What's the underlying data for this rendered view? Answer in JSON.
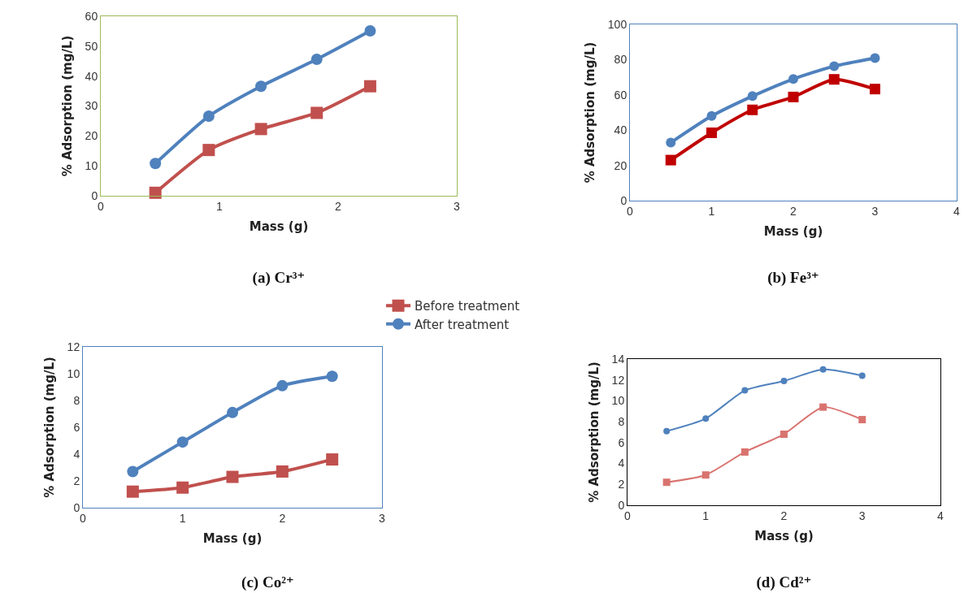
{
  "chart_data": [
    {
      "type": "line",
      "title": "(a) Cr³⁺",
      "xlabel": "Mass (g)",
      "ylabel": "% Adsorption (mg/L)",
      "xlim": [
        0,
        3
      ],
      "xticks": [
        0,
        1,
        2,
        3
      ],
      "ylim": [
        0,
        60
      ],
      "yticks": [
        0,
        10,
        20,
        30,
        40,
        50,
        60
      ],
      "grid": false,
      "legend": false,
      "series": [
        {
          "color": "#c0504d",
          "marker": "square",
          "x": [
            0.46,
            0.91,
            1.35,
            1.82,
            2.27
          ],
          "values": [
            1.0,
            15.3,
            22.3,
            27.7,
            36.6
          ]
        },
        {
          "color": "#4f81bd",
          "marker": "circle",
          "x": [
            0.46,
            0.91,
            1.35,
            1.82,
            2.27
          ],
          "values": [
            10.8,
            26.6,
            36.6,
            45.6,
            55.1
          ]
        }
      ]
    },
    {
      "type": "line",
      "title": "(b) Fe³⁺",
      "xlabel": "Mass (g)",
      "ylabel": "% Adsorption (mg/L)",
      "xlim": [
        0,
        4
      ],
      "xticks": [
        0,
        1,
        2,
        3,
        4
      ],
      "ylim": [
        0,
        100
      ],
      "yticks": [
        0,
        20,
        40,
        60,
        80,
        100
      ],
      "grid": false,
      "legend": false,
      "series": [
        {
          "color": "#c00000",
          "marker": "square",
          "x": [
            0.5,
            1,
            1.5,
            2,
            2.5,
            3
          ],
          "values": [
            23,
            38.5,
            51.5,
            58.8,
            68.8,
            63.3
          ]
        },
        {
          "color": "#4f81bd",
          "marker": "circle",
          "x": [
            0.5,
            1,
            1.5,
            2,
            2.5,
            3
          ],
          "values": [
            32.9,
            48,
            59.3,
            69,
            76.3,
            80.9
          ]
        }
      ]
    },
    {
      "type": "line",
      "title": "(c) Co²⁺",
      "xlabel": "Mass (g)",
      "ylabel": "% Adsorption (mg/L)",
      "xlim": [
        0,
        3
      ],
      "xticks": [
        0,
        1,
        2,
        3
      ],
      "ylim": [
        0,
        12
      ],
      "yticks": [
        0,
        2,
        4,
        6,
        8,
        10,
        12
      ],
      "grid": false,
      "legend": "top",
      "series": [
        {
          "name": "Before treatment",
          "color": "#c0504d",
          "marker": "square",
          "x": [
            0.5,
            1,
            1.5,
            2,
            2.5
          ],
          "values": [
            1.2,
            1.5,
            2.3,
            2.7,
            3.6
          ]
        },
        {
          "name": "After treatment",
          "color": "#4f81bd",
          "marker": "circle",
          "x": [
            0.5,
            1,
            1.5,
            2,
            2.5
          ],
          "values": [
            2.7,
            4.9,
            7.1,
            9.1,
            9.8
          ]
        }
      ]
    },
    {
      "type": "line",
      "title": "(d) Cd²⁺",
      "xlabel": "Mass (g)",
      "ylabel": "% Adsorption (mg/L)",
      "xlim": [
        0,
        4
      ],
      "xticks": [
        0,
        1,
        2,
        3,
        4
      ],
      "ylim": [
        0,
        14
      ],
      "yticks": [
        0,
        2,
        4,
        6,
        8,
        10,
        12,
        14
      ],
      "grid": false,
      "legend": false,
      "series": [
        {
          "color": "#d9736f",
          "marker": "square",
          "x": [
            0.5,
            1,
            1.5,
            2,
            2.5,
            3
          ],
          "values": [
            2.2,
            2.9,
            5.1,
            6.8,
            9.4,
            8.2
          ]
        },
        {
          "color": "#4f81bd",
          "marker": "circle",
          "x": [
            0.5,
            1,
            1.5,
            2,
            2.5,
            3
          ],
          "values": [
            7.1,
            8.3,
            11.0,
            11.9,
            13.0,
            12.4
          ]
        }
      ]
    }
  ]
}
